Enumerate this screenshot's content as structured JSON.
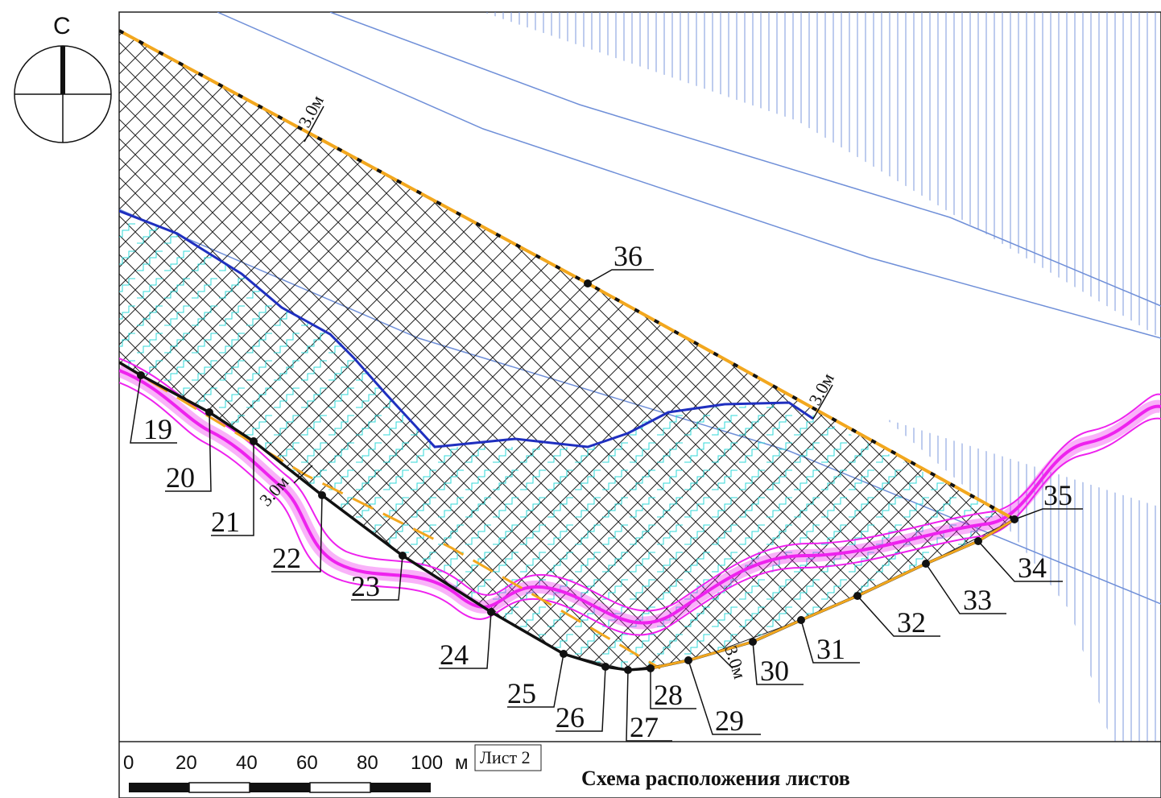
{
  "north": {
    "label": "С",
    "icon": "north-arrow-icon"
  },
  "points": [
    {
      "id": "19",
      "label": "19"
    },
    {
      "id": "20",
      "label": "20"
    },
    {
      "id": "21",
      "label": "21"
    },
    {
      "id": "22",
      "label": "22"
    },
    {
      "id": "23",
      "label": "23"
    },
    {
      "id": "24",
      "label": "24"
    },
    {
      "id": "25",
      "label": "25"
    },
    {
      "id": "26",
      "label": "26"
    },
    {
      "id": "27",
      "label": "27"
    },
    {
      "id": "28",
      "label": "28"
    },
    {
      "id": "29",
      "label": "29"
    },
    {
      "id": "30",
      "label": "30"
    },
    {
      "id": "31",
      "label": "31"
    },
    {
      "id": "32",
      "label": "32"
    },
    {
      "id": "33",
      "label": "33"
    },
    {
      "id": "34",
      "label": "34"
    },
    {
      "id": "35",
      "label": "35"
    },
    {
      "id": "36",
      "label": "36"
    }
  ],
  "dimensions": {
    "top": "3.0м",
    "right": "3.0м",
    "left": "3.0м",
    "bottom": "3.0м"
  },
  "scale_bar": {
    "ticks": [
      "0",
      "20",
      "40",
      "60",
      "80",
      "100"
    ],
    "unit": "м"
  },
  "sheet": {
    "label": "Лист 2"
  },
  "title": "Схема расположения листов",
  "colors": {
    "boundary": "#f2a71e",
    "river_blue": "#1f2fbf",
    "river_magenta": "#ee22ee",
    "hatch_blue": "#6f8fd8",
    "grid": "#222222",
    "cyan": "#30d8d8"
  }
}
